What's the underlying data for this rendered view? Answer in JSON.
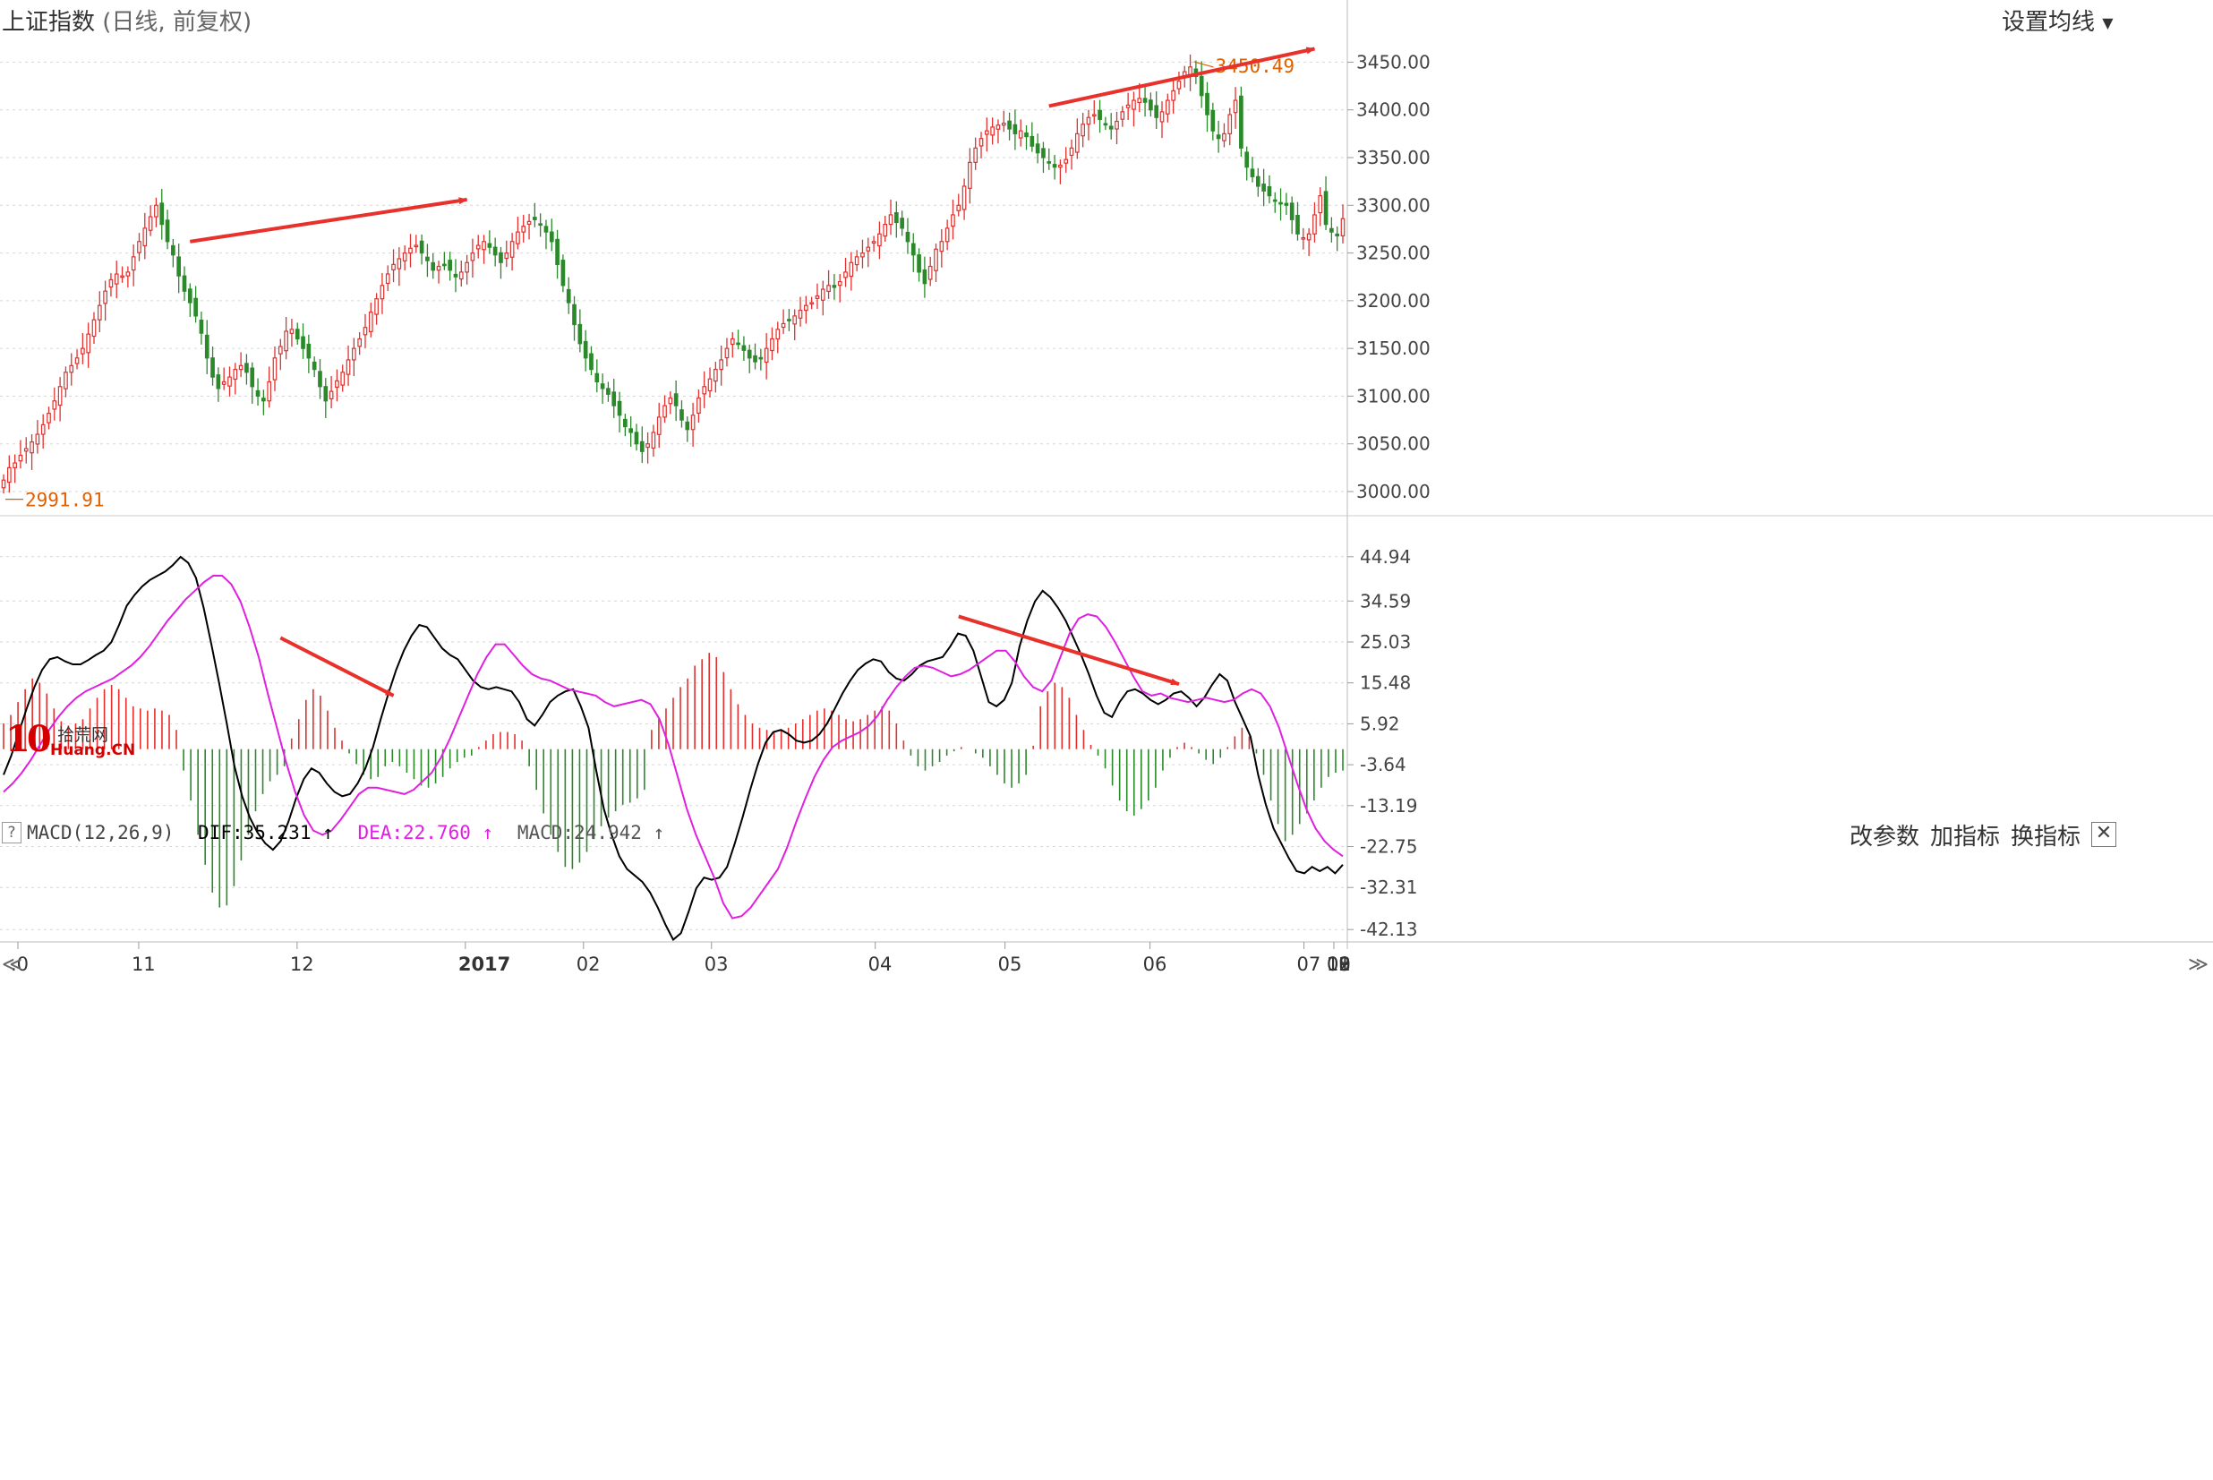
{
  "header": {
    "title": "上证指数",
    "subtitle": "(日线, 前复权)",
    "ma_button": "设置均线",
    "dropdown_icon": "triangle-down-icon"
  },
  "indicator": {
    "help": "?",
    "name": "MACD(12,26,9)",
    "dif_label": "DIF:35.231",
    "dif_arrow": "↑",
    "dea_label": "DEA:22.760",
    "dea_arrow": "↑",
    "macd_label": "MACD:24.942",
    "macd_arrow": "↑",
    "buttons": [
      "改参数",
      "加指标",
      "换指标"
    ],
    "close": "✕"
  },
  "watermark": {
    "big": "10",
    "line1": "拾荒网",
    "line2": "Huang.CN"
  },
  "colors": {
    "up": "#e0312e",
    "down": "#2a8a2a",
    "dif": "#000000",
    "dea": "#e020e0",
    "arrow": "#e8312a",
    "annot": "#e06000"
  },
  "chart_data": [
    {
      "type": "candlestick",
      "price_axis": {
        "ticks": [
          "3000.00",
          "3050.00",
          "3100.00",
          "3150.00",
          "3200.00",
          "3250.00",
          "3300.00",
          "3350.00",
          "3400.00",
          "3450.00"
        ],
        "range": [
          2985,
          3487
        ]
      },
      "annotations": {
        "low": "2991.91",
        "high": "3450.49"
      },
      "trend_arrows": [
        {
          "from": [
            33,
            3262
          ],
          "to": [
            82,
            3306
          ]
        },
        {
          "from": [
            185,
            3404
          ],
          "to": [
            232,
            3464
          ]
        }
      ],
      "closes": [
        3012,
        3025,
        3030,
        3038,
        3045,
        3052,
        3060,
        3070,
        3082,
        3095,
        3110,
        3125,
        3132,
        3140,
        3150,
        3165,
        3180,
        3195,
        3210,
        3222,
        3228,
        3226,
        3230,
        3246,
        3262,
        3276,
        3288,
        3300,
        3280,
        3262,
        3248,
        3226,
        3210,
        3198,
        3184,
        3166,
        3140,
        3120,
        3108,
        3115,
        3120,
        3128,
        3132,
        3125,
        3110,
        3100,
        3095,
        3115,
        3140,
        3152,
        3168,
        3170,
        3160,
        3150,
        3140,
        3128,
        3110,
        3095,
        3105,
        3116,
        3125,
        3138,
        3150,
        3160,
        3172,
        3188,
        3202,
        3216,
        3228,
        3238,
        3244,
        3250,
        3255,
        3258,
        3250,
        3242,
        3232,
        3236,
        3238,
        3232,
        3225,
        3230,
        3240,
        3250,
        3258,
        3262,
        3256,
        3248,
        3240,
        3250,
        3262,
        3272,
        3278,
        3283,
        3285,
        3280,
        3272,
        3262,
        3238,
        3216,
        3198,
        3175,
        3155,
        3140,
        3128,
        3115,
        3108,
        3102,
        3090,
        3080,
        3068,
        3062,
        3050,
        3042,
        3050,
        3062,
        3078,
        3090,
        3098,
        3090,
        3075,
        3065,
        3080,
        3098,
        3110,
        3118,
        3128,
        3138,
        3150,
        3160,
        3155,
        3148,
        3140,
        3136,
        3140,
        3150,
        3160,
        3170,
        3176,
        3180,
        3184,
        3190,
        3195,
        3198,
        3205,
        3212,
        3216,
        3214,
        3220,
        3230,
        3240,
        3246,
        3250,
        3256,
        3262,
        3270,
        3280,
        3290,
        3282,
        3276,
        3262,
        3248,
        3230,
        3218,
        3236,
        3254,
        3262,
        3276,
        3290,
        3300,
        3320,
        3345,
        3360,
        3370,
        3378,
        3382,
        3384,
        3386,
        3380,
        3375,
        3378,
        3372,
        3362,
        3355,
        3350,
        3345,
        3340,
        3342,
        3348,
        3360,
        3375,
        3385,
        3392,
        3395,
        3390,
        3385,
        3380,
        3388,
        3398,
        3405,
        3410,
        3412,
        3408,
        3400,
        3392,
        3398,
        3410,
        3420,
        3430,
        3440,
        3445,
        3435,
        3415,
        3395,
        3378,
        3370,
        3375,
        3395,
        3410,
        3360,
        3340,
        3330,
        3320,
        3315,
        3310,
        3305,
        3302,
        3300,
        3285,
        3270,
        3266,
        3270,
        3290,
        3310,
        3280,
        3272,
        3268,
        3286
      ]
    },
    {
      "type": "line",
      "axis": {
        "ticks": [
          "44.94",
          "34.59",
          "25.03",
          "15.48",
          "5.92",
          "-3.64",
          "-13.19",
          "-22.75",
          "-32.31",
          "-42.13"
        ],
        "range": [
          -44.6,
          49.5
        ]
      },
      "series": [
        {
          "key": "dif",
          "name": "DIF",
          "values": [
            -6.0,
            -1.5,
            4.0,
            9.5,
            14.5,
            18.5,
            21.0,
            21.5,
            20.5,
            19.8,
            19.8,
            20.8,
            22.0,
            23.0,
            25.0,
            29.0,
            33.5,
            36.0,
            38.0,
            39.5,
            40.5,
            41.5,
            43.0,
            44.9,
            43.5,
            40.0,
            33.0,
            24.5,
            15.5,
            6.0,
            -4.0,
            -11.0,
            -16.0,
            -19.5,
            -22.0,
            -23.5,
            -21.5,
            -17.0,
            -11.5,
            -7.0,
            -4.5,
            -5.5,
            -8.0,
            -10.0,
            -11.0,
            -10.5,
            -8.0,
            -4.5,
            0.5,
            7.0,
            13.0,
            18.5,
            23.0,
            26.5,
            29.0,
            28.5,
            26.0,
            23.5,
            22.0,
            21.0,
            18.5,
            16.0,
            14.5,
            14.0,
            14.5,
            14.0,
            13.5,
            11.0,
            7.0,
            5.5,
            8.0,
            11.0,
            12.5,
            13.5,
            14.0,
            10.0,
            5.0,
            -5.0,
            -14.0,
            -20.0,
            -25.0,
            -28.0,
            -29.5,
            -31.0,
            -33.5,
            -37.0,
            -41.0,
            -44.5,
            -43.0,
            -38.0,
            -32.5,
            -30.0,
            -30.5,
            -30.0,
            -27.5,
            -22.0,
            -16.0,
            -9.5,
            -3.5,
            1.5,
            4.0,
            4.5,
            3.5,
            2.0,
            1.5,
            2.0,
            3.5,
            6.0,
            9.5,
            13.0,
            16.0,
            18.5,
            20.0,
            21.0,
            20.5,
            18.0,
            16.5,
            16.0,
            17.5,
            19.5,
            20.5,
            21.0,
            21.5,
            24.0,
            27.0,
            26.5,
            23.0,
            17.0,
            11.0,
            10.0,
            11.5,
            15.5,
            24.0,
            30.0,
            34.5,
            37.0,
            35.5,
            33.0,
            30.0,
            26.0,
            22.0,
            17.5,
            12.5,
            8.5,
            7.5,
            11.0,
            13.5,
            14.0,
            13.0,
            11.5,
            10.5,
            11.5,
            13.0,
            13.5,
            12.0,
            10.0,
            12.0,
            15.0,
            17.5,
            16.0,
            11.0,
            7.0,
            3.0,
            -6.0,
            -13.0,
            -18.5,
            -22.0,
            -25.5,
            -28.5,
            -29.0,
            -27.5,
            -28.5,
            -27.5,
            -29.0,
            -27.0
          ]
        },
        {
          "key": "dea",
          "name": "DEA",
          "values": [
            -10.0,
            -8.0,
            -5.5,
            -2.5,
            1.0,
            4.5,
            7.5,
            10.0,
            12.0,
            13.5,
            14.5,
            15.5,
            16.5,
            18.0,
            19.5,
            21.5,
            24.0,
            27.0,
            30.0,
            32.5,
            35.0,
            37.0,
            39.0,
            40.5,
            40.5,
            38.5,
            34.5,
            28.5,
            21.5,
            13.0,
            5.0,
            -3.0,
            -10.0,
            -15.5,
            -19.0,
            -20.0,
            -19.0,
            -16.5,
            -13.5,
            -10.5,
            -9.0,
            -9.0,
            -9.5,
            -10.0,
            -10.5,
            -9.5,
            -7.5,
            -5.5,
            -2.0,
            2.5,
            7.5,
            12.5,
            17.5,
            21.5,
            24.5,
            24.5,
            22.0,
            19.5,
            17.5,
            16.5,
            16.0,
            15.0,
            14.0,
            13.5,
            13.0,
            12.5,
            11.0,
            10.0,
            10.5,
            11.0,
            11.5,
            10.5,
            7.0,
            1.0,
            -6.5,
            -14.0,
            -20.0,
            -25.0,
            -30.0,
            -36.0,
            -39.5,
            -39.0,
            -37.0,
            -34.0,
            -31.0,
            -28.0,
            -23.0,
            -17.0,
            -11.5,
            -6.5,
            -2.5,
            0.5,
            2.0,
            3.0,
            4.0,
            5.5,
            8.0,
            11.5,
            14.5,
            17.0,
            19.0,
            19.5,
            19.0,
            18.0,
            17.0,
            17.5,
            18.5,
            20.0,
            21.5,
            23.0,
            23.0,
            20.5,
            17.0,
            14.5,
            13.5,
            16.0,
            21.5,
            27.0,
            30.5,
            31.5,
            31.0,
            28.5,
            25.0,
            21.0,
            17.0,
            13.5,
            12.5,
            13.0,
            12.0,
            11.5,
            11.0,
            11.5,
            12.0,
            11.5,
            11.0,
            11.5,
            13.0,
            14.0,
            13.0,
            10.0,
            5.0,
            -1.5,
            -8.0,
            -14.0,
            -18.5,
            -21.5,
            -23.5,
            -25.0
          ]
        },
        {
          "key": "macd",
          "name": "MACD",
          "type": "bar",
          "values": [
            6.0,
            8.0,
            11.0,
            14.0,
            16.5,
            15.5,
            13.0,
            9.5,
            6.5,
            5.5,
            6.0,
            7.0,
            9.5,
            12.0,
            14.0,
            15.0,
            14.0,
            12.0,
            10.0,
            9.5,
            9.0,
            9.5,
            9.0,
            8.0,
            4.5,
            -5.0,
            -12.0,
            -20.0,
            -27.0,
            -33.5,
            -37.0,
            -36.5,
            -32.0,
            -26.0,
            -20.0,
            -14.5,
            -10.5,
            -7.5,
            -6.0,
            -4.0,
            2.5,
            7.0,
            11.5,
            14.0,
            12.5,
            9.0,
            5.0,
            2.0,
            -1.0,
            -3.5,
            -6.0,
            -7.0,
            -6.5,
            -4.0,
            -3.0,
            -4.0,
            -5.5,
            -7.0,
            -8.5,
            -9.0,
            -8.0,
            -6.5,
            -4.5,
            -3.0,
            -2.0,
            -1.5,
            0.5,
            2.0,
            3.5,
            4.0,
            4.0,
            3.5,
            2.0,
            -4.0,
            -9.5,
            -15.0,
            -20.0,
            -24.0,
            -27.5,
            -28.0,
            -26.5,
            -24.0,
            -21.0,
            -18.0,
            -16.0,
            -14.5,
            -13.0,
            -12.5,
            -11.5,
            -9.5,
            4.5,
            7.0,
            9.5,
            12.0,
            14.5,
            16.5,
            19.5,
            21.0,
            22.5,
            21.5,
            18.0,
            14.0,
            10.5,
            8.0,
            6.0,
            5.0,
            4.5,
            4.0,
            4.5,
            5.0,
            6.0,
            7.0,
            8.0,
            9.0,
            9.5,
            9.0,
            8.0,
            7.0,
            6.5,
            7.0,
            8.0,
            9.0,
            10.0,
            9.0,
            6.0,
            2.0,
            -1.5,
            -4.0,
            -5.0,
            -4.0,
            -3.0,
            -1.5,
            -0.5,
            0.5,
            0.0,
            -1.0,
            -2.0,
            -4.0,
            -6.0,
            -8.0,
            -9.0,
            -8.0,
            -6.0,
            0.8,
            10.0,
            13.5,
            15.5,
            14.5,
            12.0,
            8.0,
            4.5,
            1.0,
            -1.5,
            -4.5,
            -8.5,
            -12.0,
            -14.5,
            -15.5,
            -14.0,
            -12.0,
            -9.0,
            -5.0,
            -2.0,
            0.5,
            1.5,
            0.5,
            -1.0,
            -2.5,
            -3.5,
            -2.0,
            0.5,
            3.0,
            5.0,
            3.0,
            -1.0,
            -6.0,
            -12.0,
            -17.5,
            -21.5,
            -20.0,
            -17.5,
            -15.0,
            -12.0,
            -9.0,
            -6.5,
            -5.5,
            -5.0
          ]
        }
      ],
      "trend_arrows": [
        {
          "from": [
            49,
            26.0
          ],
          "to": [
            69,
            12.5
          ]
        },
        {
          "from": [
            169,
            31.0
          ],
          "to": [
            208,
            15.2
          ]
        }
      ]
    }
  ],
  "x_axis": {
    "scroll_left": "≪",
    "scroll_right": "≫",
    "labels": [
      ".0",
      "11",
      "12",
      "2017",
      "02",
      "03",
      "04",
      "05",
      "06",
      "07",
      "08",
      "09",
      "10",
      "11",
      "12"
    ]
  }
}
